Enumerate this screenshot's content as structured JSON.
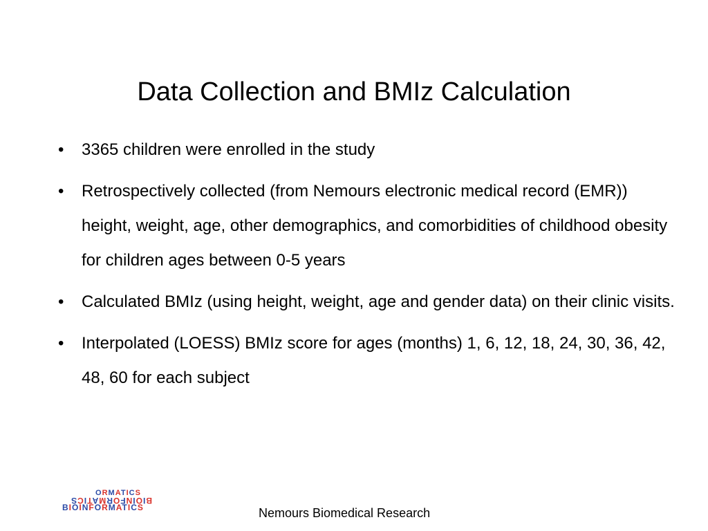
{
  "slide": {
    "title": "Data Collection and BMIz Calculation",
    "bullet_marker": "•",
    "bullets": [
      "3365 children were enrolled in the study",
      "Retrospectively collected (from Nemours electronic medical record (EMR)) height, weight, age, other demographics, and comorbidities of childhood obesity for children ages between 0-5 years",
      "Calculated BMIz (using height, weight, age and gender data) on their clinic visits.",
      "Interpolated (LOESS)  BMIz score for ages (months) 1, 6, 12, 18, 24, 30, 36, 42, 48, 60 for each subject"
    ]
  },
  "footer": {
    "logo_text_top": "BIOINFORMATICS",
    "logo_text_bottom": "BIOINFORMATICS",
    "logo_colors": [
      "#d9322b",
      "#2b4aa6"
    ],
    "organization": "Nemours Biomedical Research"
  }
}
